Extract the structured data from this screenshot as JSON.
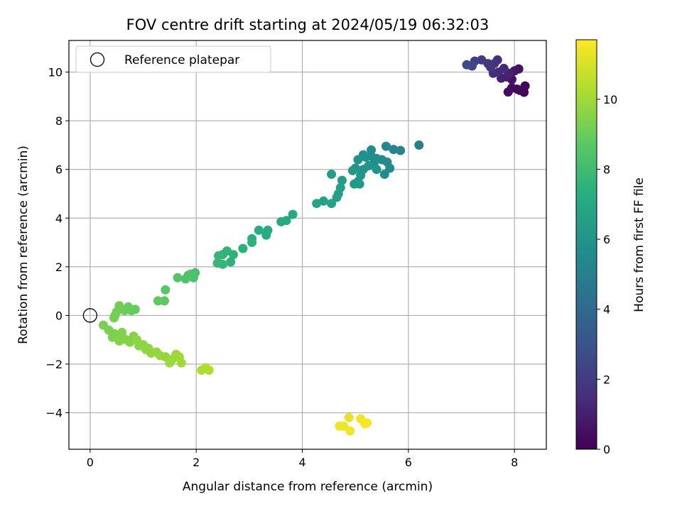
{
  "chart_data": {
    "type": "scatter",
    "title": "FOV centre drift starting at 2024/05/19 06:32:03",
    "xlabel": "Angular distance from reference (arcmin)",
    "ylabel": "Rotation from reference (arcmin)",
    "xlim": [
      -0.4,
      8.6
    ],
    "ylim": [
      -5.5,
      11.3
    ],
    "xticks": [
      0,
      2,
      4,
      6,
      8
    ],
    "yticks": [
      -4,
      -2,
      0,
      2,
      4,
      6,
      8,
      10
    ],
    "grid": true,
    "legend": {
      "position": "top-left",
      "entries": [
        "Reference platepar"
      ]
    },
    "reference_point": {
      "x": 0,
      "y": 0,
      "label": "Reference platepar"
    },
    "colorbar": {
      "label": "Hours from first FF file",
      "min": 0,
      "max": 11.7,
      "ticks": [
        0,
        2,
        4,
        6,
        8,
        10
      ],
      "colormap": "viridis"
    },
    "points": [
      {
        "x": 8.2,
        "y": 9.43,
        "c": 0.1
      },
      {
        "x": 8.18,
        "y": 9.17,
        "c": 0.15
      },
      {
        "x": 8.05,
        "y": 9.3,
        "c": 0.2
      },
      {
        "x": 7.95,
        "y": 9.35,
        "c": 0.3
      },
      {
        "x": 8.1,
        "y": 9.25,
        "c": 0.25
      },
      {
        "x": 7.88,
        "y": 9.18,
        "c": 0.4
      },
      {
        "x": 7.95,
        "y": 9.7,
        "c": 0.5
      },
      {
        "x": 8.08,
        "y": 10.13,
        "c": 0.6
      },
      {
        "x": 8.0,
        "y": 10.05,
        "c": 0.7
      },
      {
        "x": 7.85,
        "y": 9.8,
        "c": 0.9
      },
      {
        "x": 7.75,
        "y": 9.75,
        "c": 1.0
      },
      {
        "x": 7.9,
        "y": 9.95,
        "c": 1.1
      },
      {
        "x": 7.8,
        "y": 10.15,
        "c": 1.3
      },
      {
        "x": 7.7,
        "y": 10.0,
        "c": 1.4
      },
      {
        "x": 7.6,
        "y": 9.95,
        "c": 1.5
      },
      {
        "x": 7.68,
        "y": 10.5,
        "c": 1.6
      },
      {
        "x": 7.62,
        "y": 10.35,
        "c": 1.7
      },
      {
        "x": 7.55,
        "y": 10.2,
        "c": 1.8
      },
      {
        "x": 7.5,
        "y": 10.35,
        "c": 1.9
      },
      {
        "x": 7.38,
        "y": 10.5,
        "c": 2.0
      },
      {
        "x": 7.25,
        "y": 10.45,
        "c": 2.2
      },
      {
        "x": 7.2,
        "y": 10.25,
        "c": 2.4
      },
      {
        "x": 7.1,
        "y": 10.3,
        "c": 2.6
      },
      {
        "x": 6.2,
        "y": 7.0,
        "c": 5.0
      },
      {
        "x": 5.85,
        "y": 6.78,
        "c": 5.2
      },
      {
        "x": 5.72,
        "y": 6.82,
        "c": 5.3
      },
      {
        "x": 5.58,
        "y": 6.95,
        "c": 5.4
      },
      {
        "x": 5.65,
        "y": 6.05,
        "c": 5.5
      },
      {
        "x": 5.55,
        "y": 5.8,
        "c": 5.6
      },
      {
        "x": 5.5,
        "y": 6.4,
        "c": 5.5
      },
      {
        "x": 5.4,
        "y": 6.45,
        "c": 5.6
      },
      {
        "x": 5.35,
        "y": 6.25,
        "c": 5.7
      },
      {
        "x": 5.3,
        "y": 6.8,
        "c": 5.6
      },
      {
        "x": 5.3,
        "y": 6.55,
        "c": 5.7
      },
      {
        "x": 5.2,
        "y": 6.5,
        "c": 5.8
      },
      {
        "x": 5.15,
        "y": 6.6,
        "c": 5.8
      },
      {
        "x": 5.05,
        "y": 6.4,
        "c": 5.9
      },
      {
        "x": 5.4,
        "y": 6.0,
        "c": 5.9
      },
      {
        "x": 5.25,
        "y": 6.15,
        "c": 6.0
      },
      {
        "x": 5.15,
        "y": 6.0,
        "c": 6.0
      },
      {
        "x": 5.1,
        "y": 5.75,
        "c": 6.1
      },
      {
        "x": 5.0,
        "y": 6.05,
        "c": 6.1
      },
      {
        "x": 4.95,
        "y": 5.95,
        "c": 6.2
      },
      {
        "x": 5.05,
        "y": 5.5,
        "c": 6.2
      },
      {
        "x": 4.98,
        "y": 5.4,
        "c": 6.3
      },
      {
        "x": 5.08,
        "y": 5.4,
        "c": 6.3
      },
      {
        "x": 5.6,
        "y": 6.3,
        "c": 5.5
      },
      {
        "x": 4.55,
        "y": 5.8,
        "c": 6.4
      },
      {
        "x": 4.75,
        "y": 5.55,
        "c": 6.5
      },
      {
        "x": 4.72,
        "y": 5.25,
        "c": 6.5
      },
      {
        "x": 4.68,
        "y": 5.0,
        "c": 6.6
      },
      {
        "x": 4.65,
        "y": 4.85,
        "c": 6.6
      },
      {
        "x": 4.55,
        "y": 4.6,
        "c": 6.7
      },
      {
        "x": 4.4,
        "y": 4.7,
        "c": 6.7
      },
      {
        "x": 4.27,
        "y": 4.6,
        "c": 6.8
      },
      {
        "x": 3.82,
        "y": 4.15,
        "c": 7.0
      },
      {
        "x": 3.7,
        "y": 3.9,
        "c": 7.1
      },
      {
        "x": 3.6,
        "y": 3.85,
        "c": 7.1
      },
      {
        "x": 3.35,
        "y": 3.5,
        "c": 7.2
      },
      {
        "x": 3.32,
        "y": 3.3,
        "c": 7.2
      },
      {
        "x": 3.18,
        "y": 3.5,
        "c": 7.3
      },
      {
        "x": 3.05,
        "y": 3.15,
        "c": 7.3
      },
      {
        "x": 3.05,
        "y": 3.0,
        "c": 7.4
      },
      {
        "x": 2.88,
        "y": 2.75,
        "c": 7.4
      },
      {
        "x": 2.7,
        "y": 2.5,
        "c": 7.5
      },
      {
        "x": 2.65,
        "y": 2.2,
        "c": 7.5
      },
      {
        "x": 2.58,
        "y": 2.65,
        "c": 7.6
      },
      {
        "x": 2.5,
        "y": 2.5,
        "c": 7.6
      },
      {
        "x": 2.42,
        "y": 2.45,
        "c": 7.7
      },
      {
        "x": 2.5,
        "y": 2.1,
        "c": 7.7
      },
      {
        "x": 2.4,
        "y": 2.15,
        "c": 7.8
      },
      {
        "x": 1.98,
        "y": 1.75,
        "c": 8.2
      },
      {
        "x": 1.95,
        "y": 1.55,
        "c": 8.3
      },
      {
        "x": 1.9,
        "y": 1.7,
        "c": 8.3
      },
      {
        "x": 1.85,
        "y": 1.65,
        "c": 8.4
      },
      {
        "x": 1.8,
        "y": 1.5,
        "c": 8.4
      },
      {
        "x": 1.65,
        "y": 1.55,
        "c": 8.5
      },
      {
        "x": 1.42,
        "y": 1.05,
        "c": 8.6
      },
      {
        "x": 1.4,
        "y": 0.6,
        "c": 8.7
      },
      {
        "x": 1.28,
        "y": 0.6,
        "c": 8.8
      },
      {
        "x": 0.85,
        "y": 0.25,
        "c": 8.9
      },
      {
        "x": 0.78,
        "y": 0.2,
        "c": 8.9
      },
      {
        "x": 0.72,
        "y": 0.35,
        "c": 9.0
      },
      {
        "x": 0.65,
        "y": 0.2,
        "c": 9.0
      },
      {
        "x": 0.55,
        "y": 0.4,
        "c": 9.1
      },
      {
        "x": 0.5,
        "y": 0.15,
        "c": 9.1
      },
      {
        "x": 0.47,
        "y": 0.0,
        "c": 9.2
      },
      {
        "x": 0.45,
        "y": -0.1,
        "c": 9.2
      },
      {
        "x": 0.25,
        "y": -0.4,
        "c": 9.3
      },
      {
        "x": 0.35,
        "y": -0.6,
        "c": 9.3
      },
      {
        "x": 0.45,
        "y": -0.75,
        "c": 9.3
      },
      {
        "x": 0.42,
        "y": -0.9,
        "c": 9.4
      },
      {
        "x": 0.55,
        "y": -0.85,
        "c": 9.4
      },
      {
        "x": 0.6,
        "y": -0.7,
        "c": 9.4
      },
      {
        "x": 0.55,
        "y": -1.05,
        "c": 9.5
      },
      {
        "x": 0.68,
        "y": -1.0,
        "c": 9.5
      },
      {
        "x": 0.75,
        "y": -1.1,
        "c": 9.5
      },
      {
        "x": 0.82,
        "y": -0.85,
        "c": 9.5
      },
      {
        "x": 0.88,
        "y": -1.0,
        "c": 9.6
      },
      {
        "x": 0.92,
        "y": -1.25,
        "c": 9.6
      },
      {
        "x": 1.0,
        "y": -1.2,
        "c": 9.6
      },
      {
        "x": 1.05,
        "y": -1.4,
        "c": 9.7
      },
      {
        "x": 1.1,
        "y": -1.35,
        "c": 9.7
      },
      {
        "x": 1.15,
        "y": -1.55,
        "c": 9.7
      },
      {
        "x": 1.25,
        "y": -1.5,
        "c": 9.8
      },
      {
        "x": 1.32,
        "y": -1.65,
        "c": 9.8
      },
      {
        "x": 1.42,
        "y": -1.7,
        "c": 9.8
      },
      {
        "x": 1.5,
        "y": -1.95,
        "c": 9.9
      },
      {
        "x": 1.55,
        "y": -1.8,
        "c": 9.9
      },
      {
        "x": 1.62,
        "y": -1.6,
        "c": 9.9
      },
      {
        "x": 1.68,
        "y": -1.7,
        "c": 10.0
      },
      {
        "x": 1.72,
        "y": -1.95,
        "c": 10.0
      },
      {
        "x": 2.1,
        "y": -2.25,
        "c": 10.2
      },
      {
        "x": 2.18,
        "y": -2.15,
        "c": 10.3
      },
      {
        "x": 2.24,
        "y": -2.25,
        "c": 10.3
      },
      {
        "x": 4.88,
        "y": -4.2,
        "c": 11.3
      },
      {
        "x": 4.7,
        "y": -4.55,
        "c": 11.4
      },
      {
        "x": 4.78,
        "y": -4.55,
        "c": 11.4
      },
      {
        "x": 4.9,
        "y": -4.75,
        "c": 11.5
      },
      {
        "x": 5.1,
        "y": -4.25,
        "c": 11.5
      },
      {
        "x": 5.18,
        "y": -4.45,
        "c": 11.6
      },
      {
        "x": 5.22,
        "y": -4.42,
        "c": 11.6
      }
    ]
  }
}
